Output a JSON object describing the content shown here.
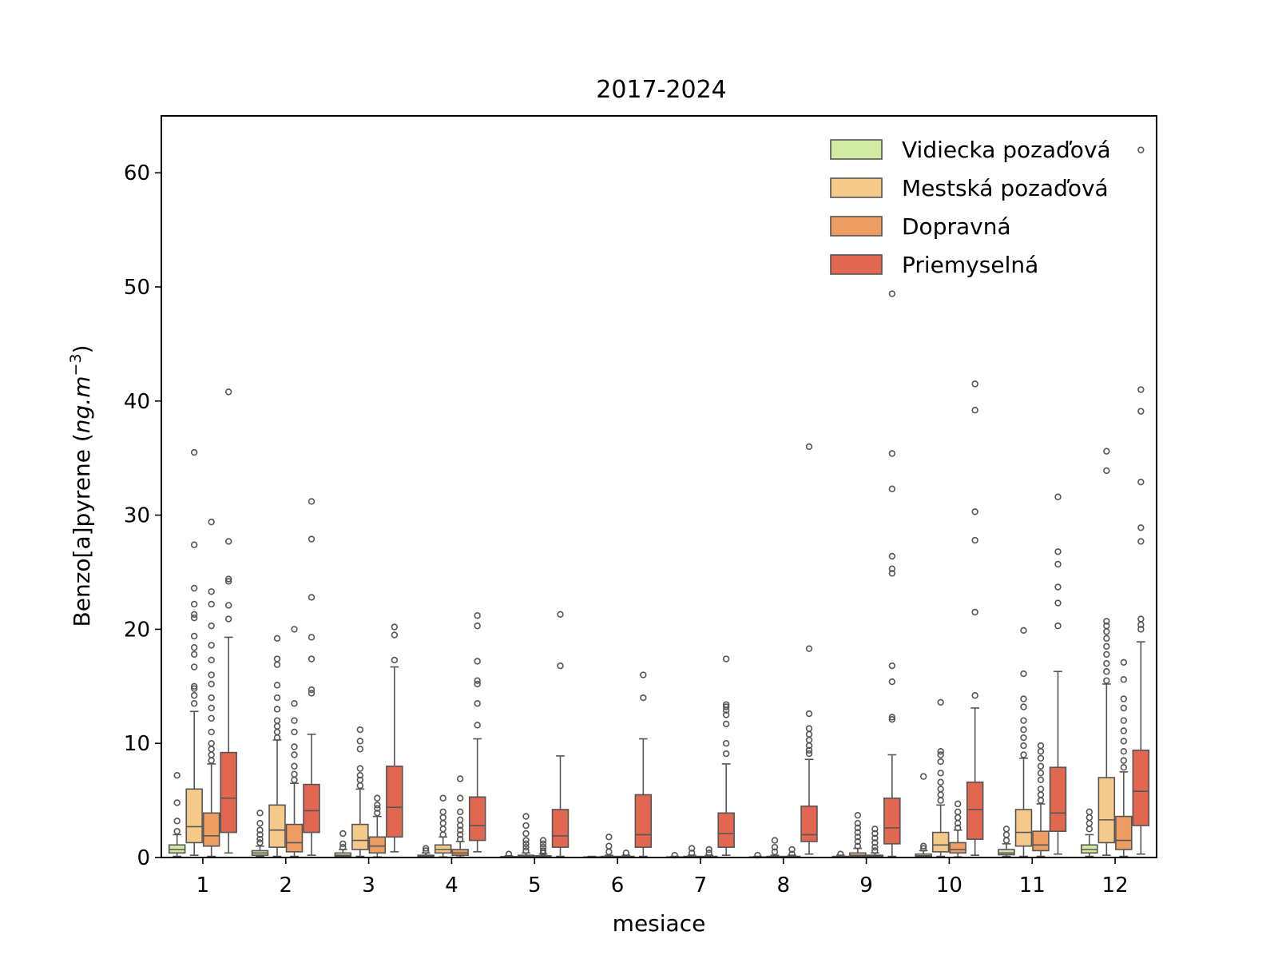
{
  "chart_data": {
    "type": "box",
    "title": "2017-2024",
    "xlabel": "mesiace",
    "ylabel_prefix": "Benzo[a]pyrene (",
    "ylabel_unit": "ng.m",
    "ylabel_exp": "−3",
    "ylabel_suffix": ")",
    "ylim": [
      0,
      65
    ],
    "yticks": [
      0,
      10,
      20,
      30,
      40,
      50,
      60
    ],
    "categories": [
      "1",
      "2",
      "3",
      "4",
      "5",
      "6",
      "7",
      "8",
      "9",
      "10",
      "11",
      "12"
    ],
    "legend_position": "top-right",
    "series": [
      {
        "name": "Vidiecka pozaďová",
        "color": "#d1eca2",
        "boxes": [
          {
            "whislo": 0.1,
            "q1": 0.4,
            "med": 0.7,
            "q3": 1.1,
            "whishi": 2.0,
            "fliers": [
              2.3,
              3.2,
              4.8,
              7.2
            ]
          },
          {
            "whislo": 0.1,
            "q1": 0.2,
            "med": 0.4,
            "q3": 0.6,
            "whishi": 1.0,
            "fliers": [
              1.3,
              1.6,
              2.0,
              2.4,
              3.0,
              3.9
            ]
          },
          {
            "whislo": 0.05,
            "q1": 0.1,
            "med": 0.2,
            "q3": 0.4,
            "whishi": 0.7,
            "fliers": [
              0.9,
              1.2,
              2.1
            ]
          },
          {
            "whislo": 0.02,
            "q1": 0.05,
            "med": 0.1,
            "q3": 0.2,
            "whishi": 0.4,
            "fliers": [
              0.6,
              0.8
            ]
          },
          {
            "whislo": 0.01,
            "q1": 0.02,
            "med": 0.04,
            "q3": 0.08,
            "whishi": 0.15,
            "fliers": [
              0.3
            ]
          },
          {
            "whislo": 0.01,
            "q1": 0.02,
            "med": 0.03,
            "q3": 0.05,
            "whishi": 0.1,
            "fliers": []
          },
          {
            "whislo": 0.01,
            "q1": 0.02,
            "med": 0.03,
            "q3": 0.05,
            "whishi": 0.1,
            "fliers": [
              0.2
            ]
          },
          {
            "whislo": 0.01,
            "q1": 0.02,
            "med": 0.03,
            "q3": 0.05,
            "whishi": 0.1,
            "fliers": [
              0.2
            ]
          },
          {
            "whislo": 0.01,
            "q1": 0.02,
            "med": 0.05,
            "q3": 0.1,
            "whishi": 0.2,
            "fliers": [
              0.3
            ]
          },
          {
            "whislo": 0.03,
            "q1": 0.08,
            "med": 0.15,
            "q3": 0.3,
            "whishi": 0.6,
            "fliers": [
              0.8,
              1.0,
              7.1
            ]
          },
          {
            "whislo": 0.1,
            "q1": 0.25,
            "med": 0.4,
            "q3": 0.7,
            "whishi": 1.2,
            "fliers": [
              1.5,
              2.0,
              2.5
            ]
          },
          {
            "whislo": 0.1,
            "q1": 0.4,
            "med": 0.7,
            "q3": 1.1,
            "whishi": 2.0,
            "fliers": [
              2.5,
              3.0,
              3.5,
              4.0
            ]
          }
        ]
      },
      {
        "name": "Mestská pozaďová",
        "color": "#f5c98a",
        "boxes": [
          {
            "whislo": 0.2,
            "q1": 1.3,
            "med": 2.7,
            "q3": 6.0,
            "whishi": 12.8,
            "fliers": [
              13.5,
              14.2,
              14.8,
              15.0,
              16.7,
              17.8,
              18.4,
              19.4,
              21.0,
              21.3,
              22.2,
              23.6,
              27.4,
              35.5
            ]
          },
          {
            "whislo": 0.1,
            "q1": 0.9,
            "med": 2.4,
            "q3": 4.6,
            "whishi": 10.3,
            "fliers": [
              10.5,
              11.0,
              11.5,
              12.0,
              13.0,
              14.0,
              15.1,
              16.9,
              17.4,
              19.2
            ]
          },
          {
            "whislo": 0.1,
            "q1": 0.7,
            "med": 1.5,
            "q3": 2.9,
            "whishi": 6.0,
            "fliers": [
              6.3,
              6.8,
              7.2,
              7.8,
              9.5,
              10.2,
              11.2
            ]
          },
          {
            "whislo": 0.05,
            "q1": 0.4,
            "med": 0.7,
            "q3": 1.1,
            "whishi": 1.8,
            "fliers": [
              2.0,
              2.5,
              3.0,
              3.5,
              4.0,
              5.2
            ]
          },
          {
            "whislo": 0.02,
            "q1": 0.05,
            "med": 0.1,
            "q3": 0.2,
            "whishi": 0.4,
            "fliers": [
              0.6,
              0.9,
              1.2,
              1.5,
              2.1,
              2.8,
              3.6
            ]
          },
          {
            "whislo": 0.01,
            "q1": 0.03,
            "med": 0.05,
            "q3": 0.1,
            "whishi": 0.2,
            "fliers": [
              0.5,
              1.0,
              1.8
            ]
          },
          {
            "whislo": 0.01,
            "q1": 0.03,
            "med": 0.05,
            "q3": 0.1,
            "whishi": 0.2,
            "fliers": [
              0.4,
              0.8
            ]
          },
          {
            "whislo": 0.01,
            "q1": 0.03,
            "med": 0.05,
            "q3": 0.1,
            "whishi": 0.2,
            "fliers": [
              0.5,
              0.9,
              1.5
            ]
          },
          {
            "whislo": 0.02,
            "q1": 0.1,
            "med": 0.2,
            "q3": 0.4,
            "whishi": 0.8,
            "fliers": [
              1.0,
              1.4,
              1.8,
              2.2,
              2.6,
              3.0,
              3.7
            ]
          },
          {
            "whislo": 0.1,
            "q1": 0.5,
            "med": 1.1,
            "q3": 2.2,
            "whishi": 4.6,
            "fliers": [
              5.0,
              5.5,
              6.0,
              6.6,
              7.4,
              8.4,
              9.0,
              9.3,
              13.6
            ]
          },
          {
            "whislo": 0.1,
            "q1": 1.0,
            "med": 2.2,
            "q3": 4.2,
            "whishi": 8.7,
            "fliers": [
              9.0,
              9.8,
              10.5,
              11.2,
              12.0,
              13.2,
              13.9,
              16.1,
              19.9
            ]
          },
          {
            "whislo": 0.2,
            "q1": 1.3,
            "med": 3.3,
            "q3": 7.0,
            "whishi": 15.2,
            "fliers": [
              15.5,
              16.3,
              17.0,
              17.8,
              18.5,
              19.2,
              19.8,
              20.3,
              20.7,
              33.9,
              35.6
            ]
          }
        ]
      },
      {
        "name": "Dopravná",
        "color": "#ee9d62",
        "boxes": [
          {
            "whislo": 0.1,
            "q1": 1.0,
            "med": 1.9,
            "q3": 3.9,
            "whishi": 8.2,
            "fliers": [
              8.5,
              9.0,
              9.5,
              10.0,
              11.0,
              12.2,
              13.1,
              14.0,
              15.2,
              16.0,
              17.3,
              18.6,
              20.3,
              22.2,
              23.3,
              29.4
            ]
          },
          {
            "whislo": 0.1,
            "q1": 0.5,
            "med": 1.3,
            "q3": 2.9,
            "whishi": 6.5,
            "fliers": [
              6.8,
              7.3,
              8.0,
              9.0,
              9.7,
              11.0,
              12.0,
              13.5,
              20.0
            ]
          },
          {
            "whislo": 0.05,
            "q1": 0.4,
            "med": 1.0,
            "q3": 1.8,
            "whishi": 3.6,
            "fliers": [
              3.9,
              4.3,
              4.6,
              5.2
            ]
          },
          {
            "whislo": 0.05,
            "q1": 0.2,
            "med": 0.4,
            "q3": 0.7,
            "whishi": 1.4,
            "fliers": [
              1.6,
              2.0,
              2.4,
              2.8,
              3.3,
              4.0,
              5.2,
              6.9
            ]
          },
          {
            "whislo": 0.01,
            "q1": 0.04,
            "med": 0.08,
            "q3": 0.15,
            "whishi": 0.3,
            "fliers": [
              0.4,
              0.6,
              0.9,
              1.2,
              1.5
            ]
          },
          {
            "whislo": 0.01,
            "q1": 0.03,
            "med": 0.05,
            "q3": 0.1,
            "whishi": 0.2,
            "fliers": [
              0.4
            ]
          },
          {
            "whislo": 0.01,
            "q1": 0.03,
            "med": 0.05,
            "q3": 0.1,
            "whishi": 0.2,
            "fliers": [
              0.4,
              0.7
            ]
          },
          {
            "whislo": 0.01,
            "q1": 0.03,
            "med": 0.05,
            "q3": 0.1,
            "whishi": 0.2,
            "fliers": [
              0.3,
              0.7
            ]
          },
          {
            "whislo": 0.02,
            "q1": 0.06,
            "med": 0.1,
            "q3": 0.2,
            "whishi": 0.4,
            "fliers": [
              0.6,
              0.9,
              1.3,
              1.7,
              2.1,
              2.5
            ]
          },
          {
            "whislo": 0.05,
            "q1": 0.4,
            "med": 0.7,
            "q3": 1.3,
            "whishi": 2.4,
            "fliers": [
              2.6,
              3.0,
              3.5,
              4.0,
              4.7
            ]
          },
          {
            "whislo": 0.1,
            "q1": 0.6,
            "med": 1.1,
            "q3": 2.3,
            "whishi": 4.7,
            "fliers": [
              5.0,
              5.5,
              6.0,
              6.8,
              7.4,
              8.0,
              8.7,
              9.3,
              9.8
            ]
          },
          {
            "whislo": 0.1,
            "q1": 0.7,
            "med": 1.5,
            "q3": 3.6,
            "whishi": 7.5,
            "fliers": [
              7.9,
              8.5,
              9.3,
              10.2,
              11.1,
              12.0,
              13.1,
              13.9,
              15.6,
              17.1
            ]
          }
        ]
      },
      {
        "name": "Priemyselná",
        "color": "#e16751",
        "boxes": [
          {
            "whislo": 0.4,
            "q1": 2.2,
            "med": 5.2,
            "q3": 9.2,
            "whishi": 19.3,
            "fliers": [
              20.9,
              22.1,
              24.2,
              24.4,
              27.7,
              40.8
            ]
          },
          {
            "whislo": 0.2,
            "q1": 2.2,
            "med": 4.1,
            "q3": 6.4,
            "whishi": 10.8,
            "fliers": [
              14.4,
              14.7,
              17.4,
              19.3,
              22.8,
              27.9,
              31.2
            ]
          },
          {
            "whislo": 0.5,
            "q1": 1.8,
            "med": 4.4,
            "q3": 8.0,
            "whishi": 16.7,
            "fliers": [
              17.3,
              19.5,
              20.2
            ]
          },
          {
            "whislo": 0.5,
            "q1": 1.5,
            "med": 2.8,
            "q3": 5.3,
            "whishi": 10.4,
            "fliers": [
              11.6,
              13.5,
              15.2,
              15.5,
              17.2,
              20.3,
              21.2
            ]
          },
          {
            "whislo": 0.1,
            "q1": 0.9,
            "med": 1.9,
            "q3": 4.2,
            "whishi": 8.9,
            "fliers": [
              16.8,
              21.3
            ]
          },
          {
            "whislo": 0.1,
            "q1": 0.9,
            "med": 2.0,
            "q3": 5.5,
            "whishi": 10.4,
            "fliers": [
              14.0,
              16.0
            ]
          },
          {
            "whislo": 0.2,
            "q1": 0.9,
            "med": 2.1,
            "q3": 3.9,
            "whishi": 8.2,
            "fliers": [
              9.1,
              10.0,
              11.7,
              12.5,
              12.9,
              13.2,
              13.4,
              17.4
            ]
          },
          {
            "whislo": 0.3,
            "q1": 1.4,
            "med": 2.0,
            "q3": 4.5,
            "whishi": 8.6,
            "fliers": [
              9.1,
              9.4,
              9.8,
              10.3,
              10.8,
              11.3,
              12.6,
              18.3,
              36.0
            ]
          },
          {
            "whislo": 0.1,
            "q1": 1.2,
            "med": 2.6,
            "q3": 5.2,
            "whishi": 9.0,
            "fliers": [
              12.1,
              12.3,
              15.4,
              16.8,
              24.9,
              25.3,
              26.4,
              32.3,
              35.4,
              49.4
            ]
          },
          {
            "whislo": 0.2,
            "q1": 1.6,
            "med": 4.2,
            "q3": 6.6,
            "whishi": 13.1,
            "fliers": [
              14.2,
              21.5,
              27.8,
              30.3,
              39.2,
              41.5
            ]
          },
          {
            "whislo": 0.3,
            "q1": 2.3,
            "med": 3.9,
            "q3": 7.9,
            "whishi": 16.3,
            "fliers": [
              20.3,
              22.3,
              23.7,
              25.7,
              26.8,
              31.6
            ]
          },
          {
            "whislo": 0.3,
            "q1": 2.8,
            "med": 5.8,
            "q3": 9.4,
            "whishi": 18.9,
            "fliers": [
              20.0,
              20.4,
              20.9,
              27.7,
              28.9,
              32.9,
              39.1,
              41.0,
              62.0
            ]
          }
        ]
      }
    ]
  }
}
